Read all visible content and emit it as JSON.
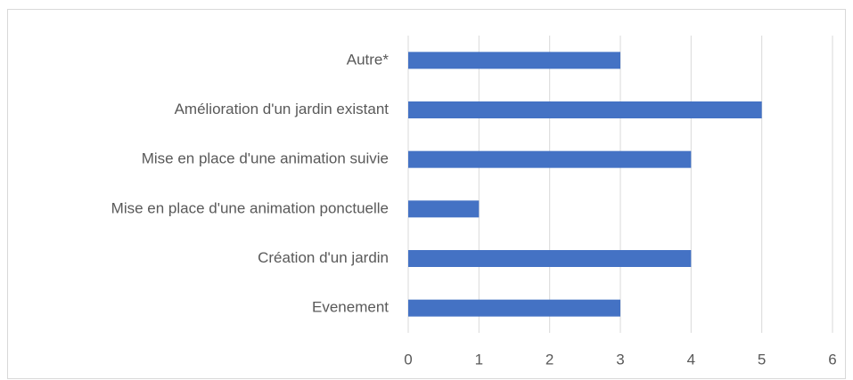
{
  "chart_data": {
    "type": "bar",
    "orientation": "horizontal",
    "categories": [
      "Autre*",
      "Amélioration d'un jardin existant",
      "Mise en place d'une animation suivie",
      "Mise en place d'une animation ponctuelle",
      "Création d'un jardin",
      "Evenement"
    ],
    "values": [
      3,
      5,
      4,
      1,
      4,
      3
    ],
    "color": "#4472c4",
    "xlim": [
      0,
      6
    ],
    "xticks": [
      0,
      1,
      2,
      3,
      4,
      5,
      6
    ],
    "grid": true
  }
}
